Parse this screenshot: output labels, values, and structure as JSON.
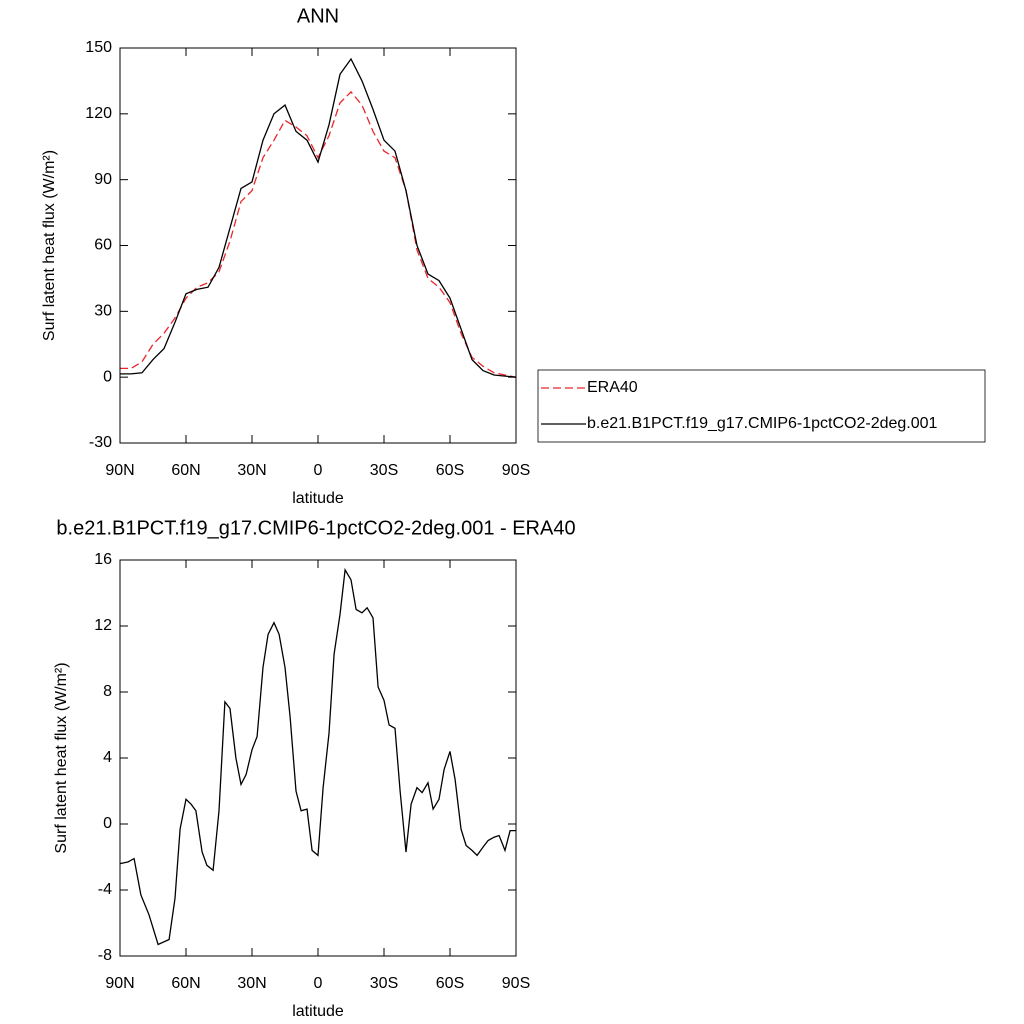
{
  "chart_data": [
    {
      "type": "line",
      "title": "ANN",
      "xlabel": "latitude",
      "ylabel": "Surf latent heat flux (W/m²)",
      "x": [
        90,
        85,
        80,
        75,
        70,
        65,
        60,
        55,
        50,
        45,
        40,
        35,
        30,
        25,
        20,
        15,
        10,
        5,
        0,
        -5,
        -10,
        -15,
        -20,
        -25,
        -30,
        -35,
        -40,
        -45,
        -50,
        -55,
        -60,
        -65,
        -70,
        -75,
        -80,
        -85,
        -90
      ],
      "series": [
        {
          "name": "ERA40",
          "color": "#e8262b",
          "linestyle": "dashed",
          "values": [
            4,
            4,
            7,
            15,
            20,
            27,
            36,
            41,
            43,
            48,
            62,
            80,
            85,
            100,
            108,
            117,
            114,
            110,
            100,
            110,
            125,
            130,
            124,
            112,
            103,
            100,
            85,
            58,
            45,
            41,
            34,
            20,
            9,
            5,
            2,
            1,
            0
          ]
        },
        {
          "name": "b.e21.B1PCT.f19_g17.CMIP6-1pctCO2-2deg.001",
          "color": "#000000",
          "linestyle": "solid",
          "values": [
            1.5,
            1.5,
            2,
            8,
            13,
            25,
            38,
            40,
            41,
            50,
            68,
            86,
            89,
            108,
            120,
            124,
            112,
            108,
            98,
            115,
            138,
            145,
            135,
            122,
            108,
            103,
            85,
            60,
            47,
            44,
            36,
            22,
            8,
            3,
            1,
            0.5,
            0
          ]
        }
      ],
      "xlim": [
        90,
        -90
      ],
      "xticks": [
        {
          "value": 90,
          "label": "90N"
        },
        {
          "value": 60,
          "label": "60N"
        },
        {
          "value": 30,
          "label": "30N"
        },
        0,
        {
          "value": -30,
          "label": "30S"
        },
        {
          "value": -60,
          "label": "60S"
        },
        {
          "value": -90,
          "label": "90S"
        }
      ],
      "ylim": [
        -30,
        150
      ],
      "yticks": [
        -30,
        0,
        30,
        60,
        90,
        120,
        150
      ],
      "legend": "right"
    },
    {
      "type": "line",
      "title": "b.e21.B1PCT.f19_g17.CMIP6-1pctCO2-2deg.001 - ERA40",
      "xlabel": "latitude",
      "ylabel": "Surf latent heat flux (W/m²)",
      "x": [
        90,
        86.4,
        83.6,
        80.5,
        76.8,
        72.7,
        67.7,
        65,
        62.7,
        60,
        57.7,
        55.5,
        52.7,
        50.5,
        47.7,
        45,
        42.3,
        40,
        37.3,
        35,
        32.7,
        30,
        27.7,
        25,
        22.7,
        20,
        17.7,
        15,
        12.7,
        10,
        7.7,
        5,
        2.7,
        0,
        -2.3,
        -5,
        -7.3,
        -10,
        -12.3,
        -15,
        -17.3,
        -20,
        -22.3,
        -25,
        -27.3,
        -30,
        -32.3,
        -35,
        -37.3,
        -40,
        -42.3,
        -45,
        -47.3,
        -50,
        -52.3,
        -55,
        -57.3,
        -60,
        -62.3,
        -65,
        -67.3,
        -70,
        -72.3,
        -75,
        -77.3,
        -80,
        -82.3,
        -85,
        -87.3,
        -90
      ],
      "series": [
        {
          "color": "#000000",
          "linestyle": "solid",
          "values": [
            -2.4,
            -2.3,
            -2.1,
            -4.3,
            -5.5,
            -7.3,
            -7.0,
            -4.5,
            -0.3,
            1.5,
            1.2,
            0.8,
            -1.7,
            -2.5,
            -2.8,
            0.8,
            7.4,
            7.0,
            4.0,
            2.4,
            3.0,
            4.5,
            5.3,
            9.5,
            11.5,
            12.2,
            11.5,
            9.5,
            6.5,
            2.0,
            0.8,
            0.9,
            -1.6,
            -1.9,
            2.2,
            5.5,
            10.3,
            12.7,
            15.4,
            14.8,
            13.0,
            12.8,
            13.1,
            12.5,
            8.3,
            7.5,
            6.0,
            5.8,
            2.0,
            -1.7,
            1.2,
            2.2,
            1.9,
            2.5,
            0.9,
            1.5,
            3.3,
            4.4,
            2.7,
            -0.3,
            -1.3,
            -1.6,
            -1.9,
            -1.4,
            -1.0,
            -0.8,
            -0.7,
            -1.6,
            -0.4,
            -0.4
          ]
        }
      ],
      "xlim": [
        90,
        -90
      ],
      "xticks": [
        {
          "value": 90,
          "label": "90N"
        },
        {
          "value": 60,
          "label": "60N"
        },
        {
          "value": 30,
          "label": "30N"
        },
        0,
        {
          "value": -30,
          "label": "30S"
        },
        {
          "value": -60,
          "label": "60S"
        },
        {
          "value": -90,
          "label": "90S"
        }
      ],
      "ylim": [
        -8,
        16
      ],
      "yticks": [
        -8,
        -4,
        0,
        4,
        8,
        12,
        16
      ]
    }
  ]
}
